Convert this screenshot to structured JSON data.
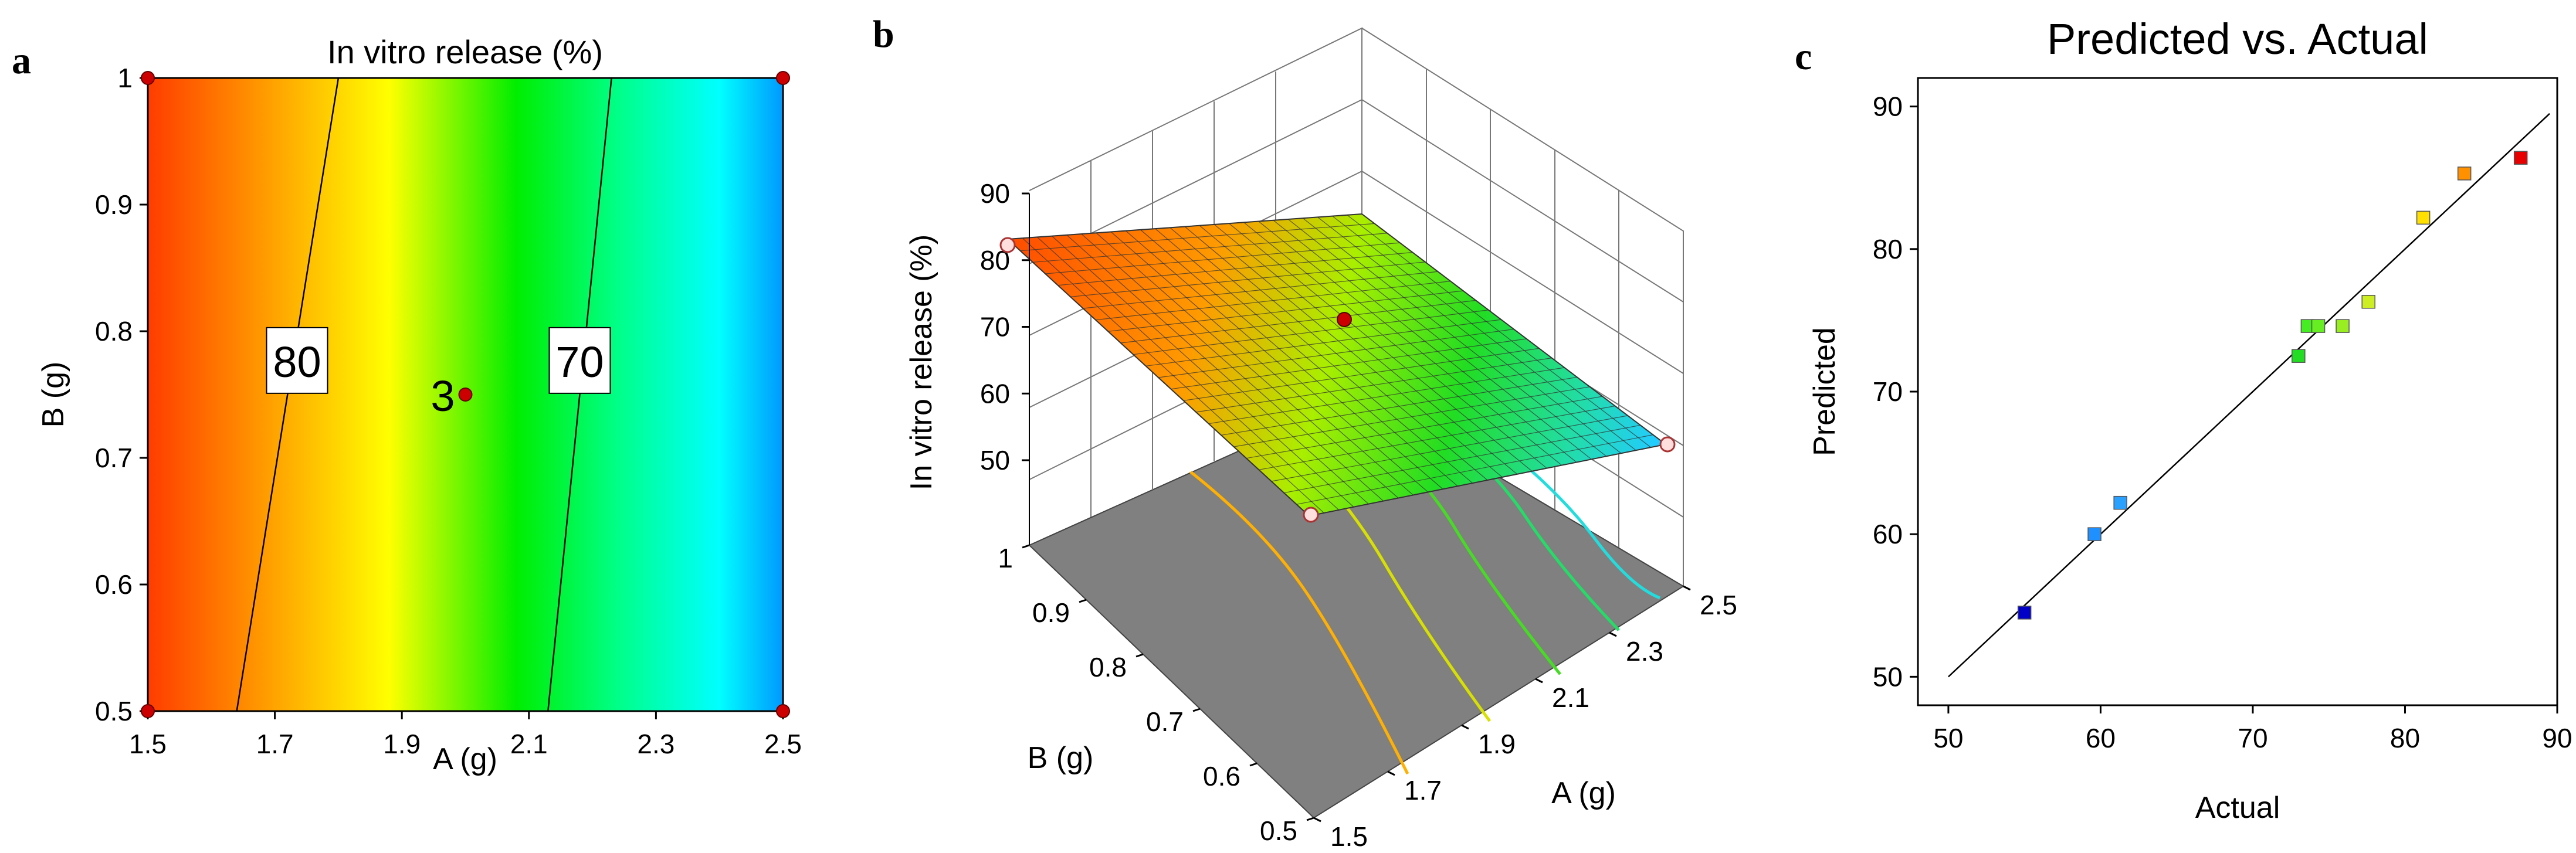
{
  "panels": {
    "a": {
      "letter": "a"
    },
    "b": {
      "letter": "b"
    },
    "c": {
      "letter": "c"
    }
  },
  "chart_data": [
    {
      "panel": "a",
      "type": "contour",
      "title": "In vitro release (%)",
      "xlabel": "A (g)",
      "ylabel": "B (g)",
      "xlim": [
        1.5,
        2.5
      ],
      "ylim": [
        0.5,
        1
      ],
      "xticks": [
        "1.5",
        "1.7",
        "1.9",
        "2.1",
        "2.3",
        "2.5"
      ],
      "yticks": [
        "0.5",
        "0.6",
        "0.7",
        "0.8",
        "0.9",
        "1"
      ],
      "colors": [
        "#ff3c00",
        "#ff8c00",
        "#ffff00",
        "#00ee00",
        "#00ffff",
        "#0090ff"
      ],
      "contours": [
        {
          "level": "80",
          "line": [
            [
              1.64,
              0.5
            ],
            [
              1.8,
              1.0
            ]
          ],
          "label_at": [
            1.735,
            0.776
          ]
        },
        {
          "level": "70",
          "line": [
            [
              2.13,
              0.5
            ],
            [
              2.23,
              1.0
            ]
          ],
          "label_at": [
            2.18,
            0.776
          ]
        }
      ],
      "points": [
        {
          "x": 1.5,
          "y": 0.5
        },
        {
          "x": 2.5,
          "y": 0.5
        },
        {
          "x": 1.5,
          "y": 1.0
        },
        {
          "x": 2.5,
          "y": 1.0
        }
      ],
      "center_point": {
        "x": 2.0,
        "y": 0.75,
        "label": "3"
      }
    },
    {
      "panel": "b",
      "type": "surface3d",
      "zlabel": "In vitro release (%)",
      "xlabel": "A (g)",
      "ylabel": "B (g)",
      "xlim": [
        1.5,
        2.5
      ],
      "ylim": [
        0.5,
        1
      ],
      "zlim": [
        45,
        90
      ],
      "xticks": [
        "1.5",
        "1.7",
        "1.9",
        "2.1",
        "2.3",
        "2.5"
      ],
      "yticks": [
        "0.5",
        "0.6",
        "0.7",
        "0.8",
        "0.9",
        "1"
      ],
      "zticks": [
        "50",
        "60",
        "70",
        "80",
        "90"
      ],
      "points": [
        {
          "x": 1.5,
          "y": 1.0,
          "z": 81
        },
        {
          "x": 1.5,
          "y": 0.5,
          "z": 78
        },
        {
          "x": 2.5,
          "y": 0.5,
          "z": 62
        },
        {
          "x": 2.0,
          "y": 0.75,
          "z": 72,
          "center": true
        }
      ]
    },
    {
      "panel": "c",
      "type": "scatter",
      "title": "Predicted vs. Actual",
      "xlabel": "Actual",
      "ylabel": "Predicted",
      "xlim": [
        48,
        90
      ],
      "ylim": [
        48,
        92
      ],
      "xticks": [
        "50",
        "60",
        "70",
        "80",
        "90"
      ],
      "yticks": [
        "50",
        "60",
        "70",
        "80",
        "90"
      ],
      "reference_line": [
        [
          50,
          50
        ],
        [
          89.5,
          89.5
        ]
      ],
      "points": [
        {
          "x": 55.0,
          "y": 54.5,
          "color": "#0000c8"
        },
        {
          "x": 59.6,
          "y": 60.0,
          "color": "#1e90ff"
        },
        {
          "x": 61.3,
          "y": 62.2,
          "color": "#2aa0ff"
        },
        {
          "x": 73.0,
          "y": 72.5,
          "color": "#22dd22"
        },
        {
          "x": 73.6,
          "y": 74.6,
          "color": "#44ee22"
        },
        {
          "x": 74.3,
          "y": 74.6,
          "color": "#66ee22"
        },
        {
          "x": 75.9,
          "y": 74.6,
          "color": "#99ee22"
        },
        {
          "x": 77.6,
          "y": 76.3,
          "color": "#ccee22"
        },
        {
          "x": 81.2,
          "y": 82.2,
          "color": "#ffe000"
        },
        {
          "x": 83.9,
          "y": 85.3,
          "color": "#ff9000"
        },
        {
          "x": 87.6,
          "y": 86.4,
          "color": "#e80000"
        }
      ]
    }
  ]
}
